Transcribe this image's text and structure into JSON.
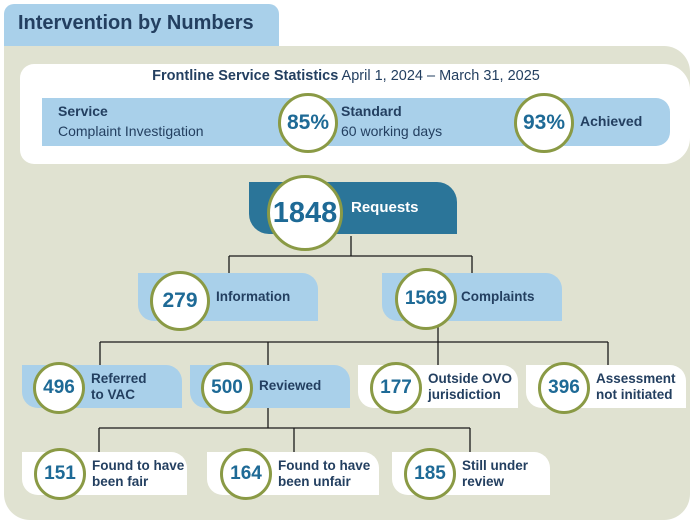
{
  "header": {
    "title": "Intervention by Numbers"
  },
  "stats": {
    "heading": "Frontline Service Statistics",
    "period": "April 1, 2024 – March 31, 2025",
    "service_label": "Service",
    "service_value": "Complaint Investigation",
    "service_percent": "85%",
    "standard_label": "Standard",
    "standard_value": "60 working days",
    "achieved_percent": "93%",
    "achieved_label": "Achieved"
  },
  "requests": {
    "count": "1848",
    "label": "Requests"
  },
  "level2": {
    "information": {
      "count": "279",
      "label": "Information"
    },
    "complaints": {
      "count": "1569",
      "label": "Complaints"
    }
  },
  "level3": {
    "referred": {
      "count": "496",
      "label_line1": "Referred",
      "label_line2": "to VAC"
    },
    "reviewed": {
      "count": "500",
      "label_line1": "Reviewed"
    },
    "outside": {
      "count": "177",
      "label_line1": "Outside OVO",
      "label_line2": "jurisdiction"
    },
    "assessment": {
      "count": "396",
      "label_line1": "Assessment",
      "label_line2": "not initiated"
    }
  },
  "level4": {
    "fair": {
      "count": "151",
      "label_line1": "Found to have",
      "label_line2": "been fair"
    },
    "unfair": {
      "count": "164",
      "label_line1": "Found to have",
      "label_line2": "been unfair"
    },
    "under_review": {
      "count": "185",
      "label_line1": "Still under",
      "label_line2": "review"
    }
  },
  "colors": {
    "navy_text": "#233f60",
    "number_blue": "#1e6a96",
    "light_blue": "#a9d0ea",
    "teal": "#2b7599",
    "olive_ring": "#8a9a45",
    "panel_bg": "#e0e2d1"
  }
}
